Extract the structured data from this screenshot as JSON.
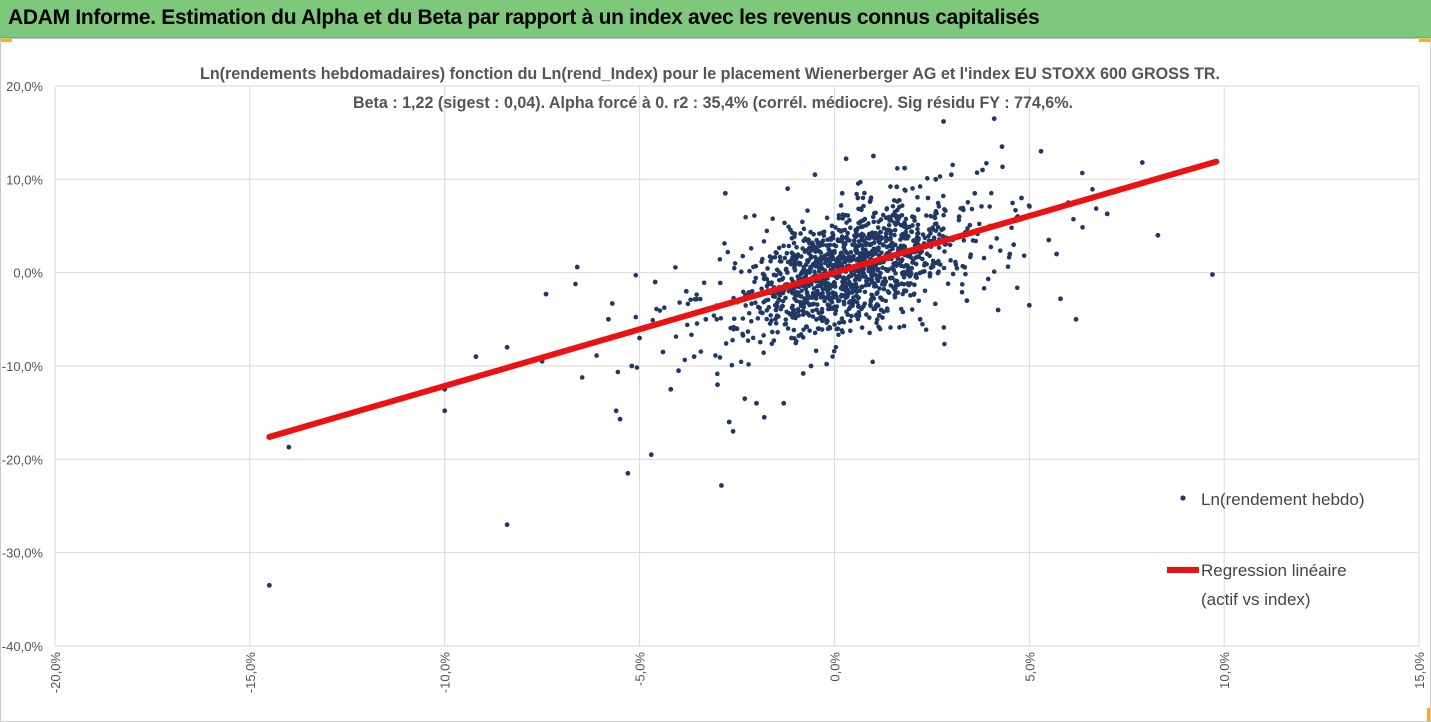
{
  "header": {
    "title": "ADAM Informe. Estimation du Alpha et du Beta par rapport à un index avec les revenus connus capitalisés",
    "bg_color": "#7dc87a",
    "accent_color": "#f2b01e"
  },
  "chart_data": {
    "type": "scatter",
    "title": "Ln(rendements hebdomadaires) fonction du Ln(rend_Index) pour le placement Wienerberger AG et l'index EU STOXX 600 GROSS TR.",
    "subtitle": "Beta : 1,22 (sigest : 0,04). Alpha forcé à 0. r2 : 35,4% (corrél. médiocre). Sig résidu FY : 774,6%.",
    "xlabel": "",
    "ylabel": "",
    "xlim": [
      -0.2,
      0.15
    ],
    "ylim": [
      -0.4,
      0.2
    ],
    "x_ticks": [
      -0.2,
      -0.15,
      -0.1,
      -0.05,
      0.0,
      0.05,
      0.1,
      0.15
    ],
    "x_tick_labels": [
      "-20,0%",
      "-15,0%",
      "-10,0%",
      "-5,0%",
      "0,0%",
      "5,0%",
      "10,0%",
      "15,0%"
    ],
    "y_ticks": [
      0.2,
      0.1,
      0.0,
      -0.1,
      -0.2,
      -0.3,
      -0.4
    ],
    "y_tick_labels": [
      "20,0%",
      "10,0%",
      "0,0%",
      "-10,0%",
      "-20,0%",
      "-30,0%",
      "-40,0%"
    ],
    "grid": true,
    "legend_position": "right",
    "series": [
      {
        "name": "Ln(rendement hebdo)",
        "kind": "scatter",
        "color": "#203864",
        "points": [
          [
            -0.145,
            -0.335
          ],
          [
            -0.14,
            -0.187
          ],
          [
            -0.115,
            -0.14
          ],
          [
            -0.1,
            -0.125
          ],
          [
            -0.1,
            -0.148
          ],
          [
            -0.092,
            -0.09
          ],
          [
            -0.084,
            -0.27
          ],
          [
            -0.084,
            -0.08
          ],
          [
            -0.075,
            -0.095
          ],
          [
            -0.074,
            -0.023
          ],
          [
            -0.066,
            0.006
          ],
          [
            -0.062,
            -0.075
          ],
          [
            -0.058,
            -0.05
          ],
          [
            -0.057,
            -0.033
          ],
          [
            -0.056,
            -0.148
          ],
          [
            -0.055,
            -0.157
          ],
          [
            -0.053,
            -0.215
          ],
          [
            -0.052,
            -0.1
          ],
          [
            -0.05,
            -0.07
          ],
          [
            -0.047,
            -0.195
          ],
          [
            -0.046,
            -0.01
          ],
          [
            -0.044,
            -0.085
          ],
          [
            -0.042,
            -0.125
          ],
          [
            -0.04,
            -0.105
          ],
          [
            -0.038,
            -0.02
          ],
          [
            -0.036,
            -0.09
          ],
          [
            -0.033,
            -0.05
          ],
          [
            -0.03,
            -0.12
          ],
          [
            -0.029,
            -0.228
          ],
          [
            -0.028,
            0.085
          ],
          [
            -0.027,
            -0.16
          ],
          [
            -0.026,
            -0.17
          ],
          [
            -0.025,
            -0.06
          ],
          [
            -0.023,
            -0.135
          ],
          [
            -0.02,
            -0.14
          ],
          [
            -0.018,
            -0.155
          ],
          [
            -0.015,
            -0.04
          ],
          [
            -0.013,
            -0.14
          ],
          [
            -0.012,
            0.09
          ],
          [
            -0.011,
            -0.07
          ],
          [
            -0.008,
            -0.108
          ],
          [
            -0.006,
            -0.1
          ],
          [
            -0.005,
            0.105
          ],
          [
            -0.004,
            -0.06
          ],
          [
            -0.003,
            0.03
          ],
          [
            -0.002,
            -0.098
          ],
          [
            0.002,
            0.085
          ],
          [
            0.003,
            0.122
          ],
          [
            0.006,
            0.08
          ],
          [
            0.01,
            0.125
          ],
          [
            0.012,
            -0.04
          ],
          [
            0.016,
            0.092
          ],
          [
            0.018,
            0.112
          ],
          [
            0.02,
            0.06
          ],
          [
            0.022,
            -0.05
          ],
          [
            0.024,
            0.08
          ],
          [
            0.026,
            0.1
          ],
          [
            0.028,
            0.162
          ],
          [
            0.03,
            0.105
          ],
          [
            0.032,
            0.06
          ],
          [
            0.034,
            -0.03
          ],
          [
            0.036,
            0.085
          ],
          [
            0.038,
            0.11
          ],
          [
            0.04,
            0.05
          ],
          [
            0.041,
            0.165
          ],
          [
            0.042,
            -0.04
          ],
          [
            0.043,
            0.135
          ],
          [
            0.045,
            0.02
          ],
          [
            0.046,
            0.03
          ],
          [
            0.048,
            0.08
          ],
          [
            0.05,
            -0.035
          ],
          [
            0.053,
            0.13
          ],
          [
            0.055,
            0.035
          ],
          [
            0.057,
            0.02
          ],
          [
            0.058,
            -0.028
          ],
          [
            0.06,
            0.075
          ],
          [
            0.062,
            -0.05
          ],
          [
            0.07,
            0.063
          ],
          [
            0.072,
            0.088
          ],
          [
            0.079,
            0.118
          ],
          [
            0.083,
            0.04
          ],
          [
            0.097,
            -0.002
          ]
        ]
      },
      {
        "name": "Regression linéaire (actif vs index)",
        "name_lines": [
          "Regression linéaire",
          "(actif vs index)"
        ],
        "kind": "line",
        "color": "#ee1111",
        "points": [
          [
            -0.145,
            -0.176
          ],
          [
            0.098,
            0.119
          ]
        ]
      }
    ]
  }
}
